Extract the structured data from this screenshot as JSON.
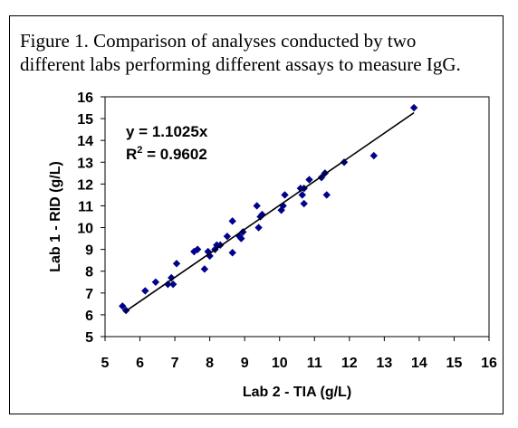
{
  "figure": {
    "caption_line1": "Figure 1.  Comparison of analyses conducted by two",
    "caption_line2": "different labs performing different assays to measure IgG."
  },
  "chart_data": {
    "type": "scatter",
    "xlabel": "Lab 2 - TIA (g/L)",
    "ylabel": "Lab 1 - RID (g/L)",
    "xlim": [
      5,
      16
    ],
    "ylim": [
      5,
      16
    ],
    "xticks": [
      5,
      6,
      7,
      8,
      9,
      10,
      11,
      12,
      13,
      14,
      15,
      16
    ],
    "yticks": [
      5,
      6,
      7,
      8,
      9,
      10,
      11,
      12,
      13,
      14,
      15,
      16
    ],
    "marker_color": "#00008B",
    "trendline": {
      "slope": 1.1025,
      "x_range": [
        5.55,
        13.85
      ]
    },
    "equation": "y = 1.1025x",
    "r2_label": "R",
    "r2_sup": "2",
    "r2_value": " = 0.9602",
    "points": [
      [
        5.5,
        6.4
      ],
      [
        5.6,
        6.2
      ],
      [
        6.15,
        7.1
      ],
      [
        6.45,
        7.5
      ],
      [
        6.8,
        7.4
      ],
      [
        6.9,
        7.7
      ],
      [
        6.95,
        7.4
      ],
      [
        7.05,
        8.35
      ],
      [
        7.55,
        8.9
      ],
      [
        7.65,
        9.0
      ],
      [
        7.85,
        8.1
      ],
      [
        7.95,
        8.9
      ],
      [
        8.0,
        8.7
      ],
      [
        8.15,
        9.0
      ],
      [
        8.2,
        9.2
      ],
      [
        8.3,
        9.2
      ],
      [
        8.5,
        9.6
      ],
      [
        8.65,
        10.3
      ],
      [
        8.65,
        8.85
      ],
      [
        8.85,
        9.6
      ],
      [
        8.9,
        9.5
      ],
      [
        8.95,
        9.8
      ],
      [
        9.35,
        11.0
      ],
      [
        9.4,
        10.0
      ],
      [
        9.45,
        10.5
      ],
      [
        9.5,
        10.6
      ],
      [
        10.05,
        10.8
      ],
      [
        10.1,
        11.0
      ],
      [
        10.15,
        11.5
      ],
      [
        10.6,
        11.8
      ],
      [
        10.65,
        11.5
      ],
      [
        10.7,
        11.1
      ],
      [
        10.7,
        11.8
      ],
      [
        10.85,
        12.2
      ],
      [
        11.2,
        12.3
      ],
      [
        11.3,
        12.5
      ],
      [
        11.35,
        11.5
      ],
      [
        11.85,
        13.0
      ],
      [
        12.7,
        13.3
      ],
      [
        13.85,
        15.5
      ]
    ]
  }
}
